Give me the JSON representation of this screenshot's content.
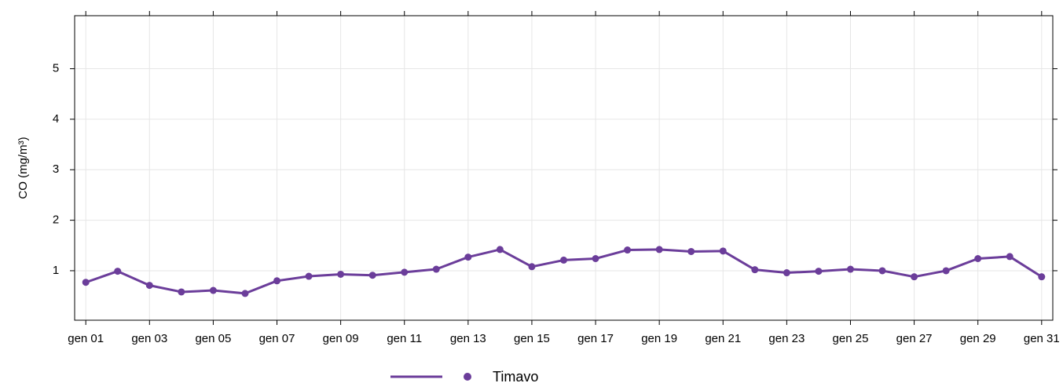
{
  "chart_data": {
    "type": "line",
    "y_label": "CO (mg/m³)",
    "categories": [
      "gen 01",
      null,
      "gen 03",
      null,
      "gen 05",
      null,
      "gen 07",
      null,
      "gen 09",
      null,
      "gen 11",
      null,
      "gen 13",
      null,
      "gen 15",
      null,
      "gen 17",
      null,
      "gen 19",
      null,
      "gen 21",
      null,
      "gen 23",
      null,
      "gen 25",
      null,
      "gen 27",
      null,
      "gen 29",
      null,
      "gen 31"
    ],
    "series": [
      {
        "name": "Timavo",
        "color": "#6b3d9a",
        "values": [
          0.77,
          0.99,
          0.71,
          0.58,
          0.61,
          0.55,
          0.8,
          0.89,
          0.93,
          0.91,
          0.97,
          1.03,
          1.27,
          1.42,
          1.08,
          1.21,
          1.24,
          1.41,
          1.42,
          1.38,
          1.39,
          1.02,
          0.96,
          0.99,
          1.03,
          1.0,
          0.88,
          1.0,
          1.24,
          1.28,
          0.88
        ]
      }
    ],
    "ylim": [
      0.02,
      6.05
    ],
    "yticks": [
      1,
      2,
      3,
      4,
      5
    ],
    "grid": true,
    "legend": "bottom"
  }
}
